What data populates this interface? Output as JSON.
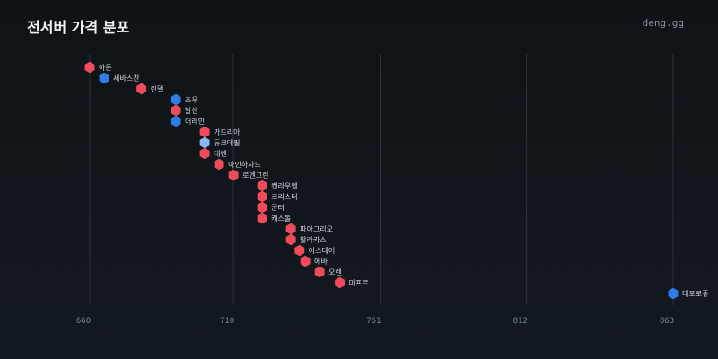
{
  "header": {
    "title": "전서버 가격 분포",
    "brand": "deng.gg"
  },
  "colors": {
    "red": "#ef4b5b",
    "blue": "#2f7de8",
    "light_blue": "#8ab8f2"
  },
  "chart_data": {
    "type": "scatter",
    "title": "전서버 가격 분포",
    "xlabel": "",
    "ylabel": "",
    "x_ticks": [
      660,
      710,
      761,
      812,
      863
    ],
    "xlim": [
      660,
      863
    ],
    "grid": true,
    "points": [
      {
        "label": "아툰",
        "x": 660,
        "color": "red"
      },
      {
        "label": "세바스찬",
        "x": 665,
        "color": "blue"
      },
      {
        "label": "린델",
        "x": 678,
        "color": "red"
      },
      {
        "label": "조우",
        "x": 690,
        "color": "blue"
      },
      {
        "label": "발센",
        "x": 690,
        "color": "red"
      },
      {
        "label": "어레인",
        "x": 690,
        "color": "blue"
      },
      {
        "label": "가드리아",
        "x": 700,
        "color": "red"
      },
      {
        "label": "듀크데필",
        "x": 700,
        "color": "light_blue"
      },
      {
        "label": "데켄",
        "x": 700,
        "color": "red"
      },
      {
        "label": "아인하사드",
        "x": 705,
        "color": "red"
      },
      {
        "label": "로엔그린",
        "x": 710,
        "color": "red"
      },
      {
        "label": "켄라우헬",
        "x": 720,
        "color": "red"
      },
      {
        "label": "크리스터",
        "x": 720,
        "color": "red"
      },
      {
        "label": "군터",
        "x": 720,
        "color": "red"
      },
      {
        "label": "캐스톨",
        "x": 720,
        "color": "red"
      },
      {
        "label": "파아그리오",
        "x": 730,
        "color": "red"
      },
      {
        "label": "발라카스",
        "x": 730,
        "color": "red"
      },
      {
        "label": "아스테어",
        "x": 733,
        "color": "red"
      },
      {
        "label": "에바",
        "x": 735,
        "color": "red"
      },
      {
        "label": "오렌",
        "x": 740,
        "color": "red"
      },
      {
        "label": "마프르",
        "x": 747,
        "color": "red"
      },
      {
        "label": "데포로쥬",
        "x": 863,
        "color": "blue"
      }
    ]
  }
}
